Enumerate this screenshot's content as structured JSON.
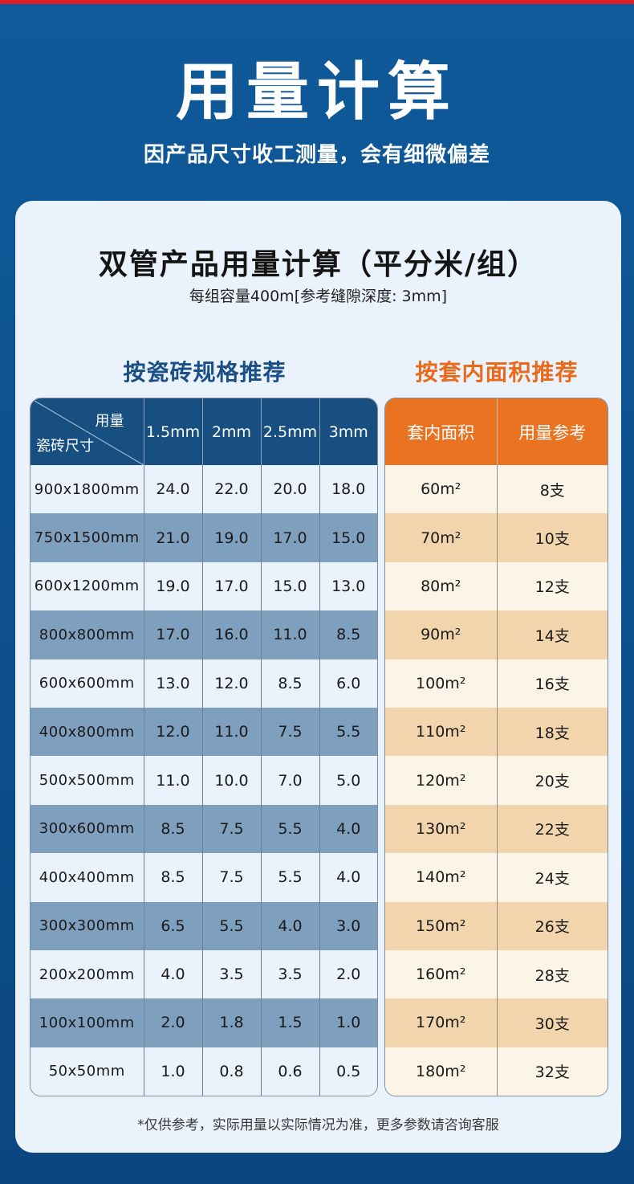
{
  "header": {
    "title": "用量计算",
    "subtitle": "因产品尺寸收工测量，会有细微偏差"
  },
  "card": {
    "title": "双管产品用量计算（平分米/组）",
    "subtitle": "每组容量400m[参考缝隙深度: 3mm]",
    "footnote": "*仅供参考，实际用量以实际情况为准，更多参数请咨询客服"
  },
  "left_section": {
    "title": "按瓷砖规格推荐",
    "corner_top": "用量",
    "corner_bottom": "瓷砖尺寸",
    "columns": [
      "1.5mm",
      "2mm",
      "2.5mm",
      "3mm"
    ],
    "rows": [
      {
        "size": "900x1800mm",
        "v": [
          "24.0",
          "22.0",
          "20.0",
          "18.0"
        ]
      },
      {
        "size": "750x1500mm",
        "v": [
          "21.0",
          "19.0",
          "17.0",
          "15.0"
        ]
      },
      {
        "size": "600x1200mm",
        "v": [
          "19.0",
          "17.0",
          "15.0",
          "13.0"
        ]
      },
      {
        "size": "800x800mm",
        "v": [
          "17.0",
          "16.0",
          "11.0",
          "8.5"
        ]
      },
      {
        "size": "600x600mm",
        "v": [
          "13.0",
          "12.0",
          "8.5",
          "6.0"
        ]
      },
      {
        "size": "400x800mm",
        "v": [
          "12.0",
          "11.0",
          "7.5",
          "5.5"
        ]
      },
      {
        "size": "500x500mm",
        "v": [
          "11.0",
          "10.0",
          "7.0",
          "5.0"
        ]
      },
      {
        "size": "300x600mm",
        "v": [
          "8.5",
          "7.5",
          "5.5",
          "4.0"
        ]
      },
      {
        "size": "400x400mm",
        "v": [
          "8.5",
          "7.5",
          "5.5",
          "4.0"
        ]
      },
      {
        "size": "300x300mm",
        "v": [
          "6.5",
          "5.5",
          "4.0",
          "3.0"
        ]
      },
      {
        "size": "200x200mm",
        "v": [
          "4.0",
          "3.5",
          "3.5",
          "2.0"
        ]
      },
      {
        "size": "100x100mm",
        "v": [
          "2.0",
          "1.8",
          "1.5",
          "1.0"
        ]
      },
      {
        "size": "50x50mm",
        "v": [
          "1.0",
          "0.8",
          "0.6",
          "0.5"
        ]
      }
    ]
  },
  "right_section": {
    "title": "按套内面积推荐",
    "columns": [
      "套内面积",
      "用量参考"
    ],
    "rows": [
      {
        "area": "60m²",
        "qty": "8支"
      },
      {
        "area": "70m²",
        "qty": "10支"
      },
      {
        "area": "80m²",
        "qty": "12支"
      },
      {
        "area": "90m²",
        "qty": "14支"
      },
      {
        "area": "100m²",
        "qty": "16支"
      },
      {
        "area": "110m²",
        "qty": "18支"
      },
      {
        "area": "120m²",
        "qty": "20支"
      },
      {
        "area": "130m²",
        "qty": "22支"
      },
      {
        "area": "140m²",
        "qty": "24支"
      },
      {
        "area": "150m²",
        "qty": "26支"
      },
      {
        "area": "160m²",
        "qty": "28支"
      },
      {
        "area": "170m²",
        "qty": "30支"
      },
      {
        "area": "180m²",
        "qty": "32支"
      }
    ]
  },
  "colors": {
    "background": "#0f5a9a",
    "accent_red": "#e01e26",
    "left_header": "#164f80",
    "left_dark_row": "#7e9fbd",
    "right_header": "#ea7322",
    "right_dark_row": "#f3d5ad",
    "right_light_row": "#fcf4e6"
  }
}
